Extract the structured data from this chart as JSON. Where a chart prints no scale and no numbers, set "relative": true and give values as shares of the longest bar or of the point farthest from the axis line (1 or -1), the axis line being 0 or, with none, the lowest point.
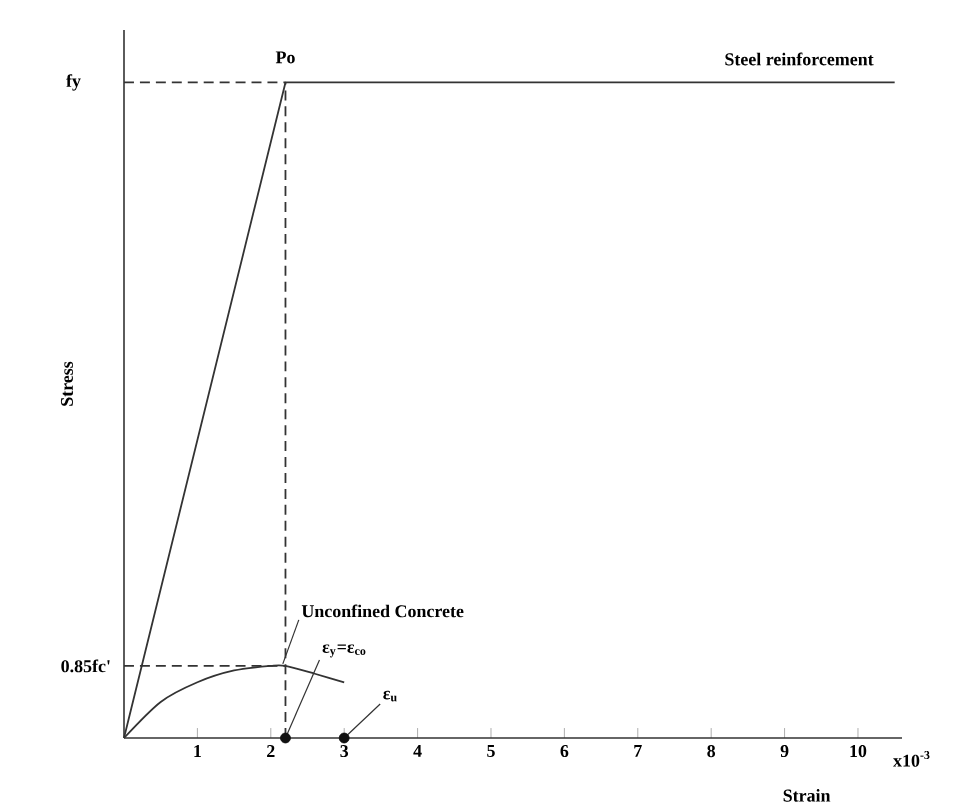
{
  "chart_data": {
    "type": "line",
    "relative": true,
    "xlabel": "Strain",
    "ylabel": "Stress",
    "xlim": [
      0,
      10.6
    ],
    "xticks": [
      1,
      2,
      3,
      4,
      5,
      6,
      7,
      8,
      9,
      10
    ],
    "series": [
      {
        "name": "Steel reinforcement",
        "color": "#333333",
        "x": [
          0,
          2.2,
          10.5
        ],
        "values": [
          0,
          1,
          1
        ]
      },
      {
        "name": "Unconfined Concrete",
        "color": "#333333",
        "x": [
          0,
          0.5,
          1,
          1.5,
          2,
          2.2,
          2.6,
          3.0
        ],
        "values": [
          0,
          0.055,
          0.085,
          0.103,
          0.11,
          0.11,
          0.098,
          0.085
        ]
      },
      {
        "type": "line",
        "line_style": "dashed",
        "color": "#333333",
        "x": [
          0,
          2.2
        ],
        "values": [
          1,
          1
        ]
      },
      {
        "type": "line",
        "line_style": "dashed",
        "color": "#333333",
        "x": [
          0,
          2.2
        ],
        "values": [
          0.11,
          0.11
        ]
      },
      {
        "type": "line",
        "line_style": "dashed",
        "color": "#333333",
        "x": [
          2.2,
          2.2
        ],
        "values": [
          0,
          1
        ]
      },
      {
        "type": "scatter",
        "color": "#111111",
        "x": [
          2.2,
          3.0
        ],
        "values": [
          0,
          0
        ]
      }
    ],
    "annotations": [
      {
        "text": "fy",
        "x": 0,
        "y": 1
      },
      {
        "text": "0.85fc'",
        "x": 0,
        "y": 0.11
      },
      {
        "text": "Po",
        "x": 2.2,
        "y": 1
      },
      {
        "text": "ε$_{y}$=ε$_{co}$",
        "x": 2.2,
        "y": 0
      },
      {
        "text": "ε$_{u}$",
        "x": 3.0,
        "y": 0
      },
      "x10$^{-3}$"
    ]
  }
}
